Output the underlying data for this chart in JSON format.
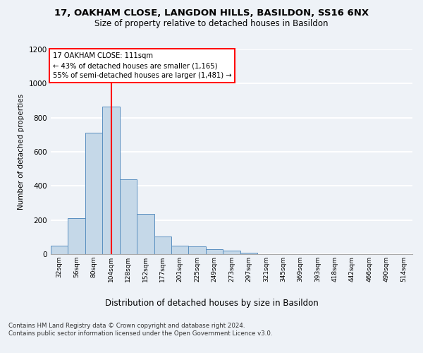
{
  "title1": "17, OAKHAM CLOSE, LANGDON HILLS, BASILDON, SS16 6NX",
  "title2": "Size of property relative to detached houses in Basildon",
  "xlabel": "Distribution of detached houses by size in Basildon",
  "ylabel": "Number of detached properties",
  "categories": [
    "32sqm",
    "56sqm",
    "80sqm",
    "104sqm",
    "128sqm",
    "152sqm",
    "177sqm",
    "201sqm",
    "225sqm",
    "249sqm",
    "273sqm",
    "297sqm",
    "321sqm",
    "345sqm",
    "369sqm",
    "393sqm",
    "418sqm",
    "442sqm",
    "466sqm",
    "490sqm",
    "514sqm"
  ],
  "values": [
    50,
    210,
    710,
    865,
    440,
    235,
    105,
    50,
    45,
    30,
    20,
    10,
    0,
    0,
    0,
    0,
    0,
    0,
    0,
    0,
    0
  ],
  "bar_color": "#c5d8e8",
  "bar_edge_color": "#5a8fc0",
  "ylim": [
    0,
    1200
  ],
  "yticks": [
    0,
    200,
    400,
    600,
    800,
    1000,
    1200
  ],
  "annotation_text_line1": "17 OAKHAM CLOSE: 111sqm",
  "annotation_text_line2": "← 43% of detached houses are smaller (1,165)",
  "annotation_text_line3": "55% of semi-detached houses are larger (1,481) →",
  "annotation_box_color": "white",
  "annotation_box_edge_color": "red",
  "vline_color": "red",
  "vline_x_data": 3.5,
  "footer": "Contains HM Land Registry data © Crown copyright and database right 2024.\nContains public sector information licensed under the Open Government Licence v3.0.",
  "bg_color": "#eef2f7",
  "grid_color": "white"
}
